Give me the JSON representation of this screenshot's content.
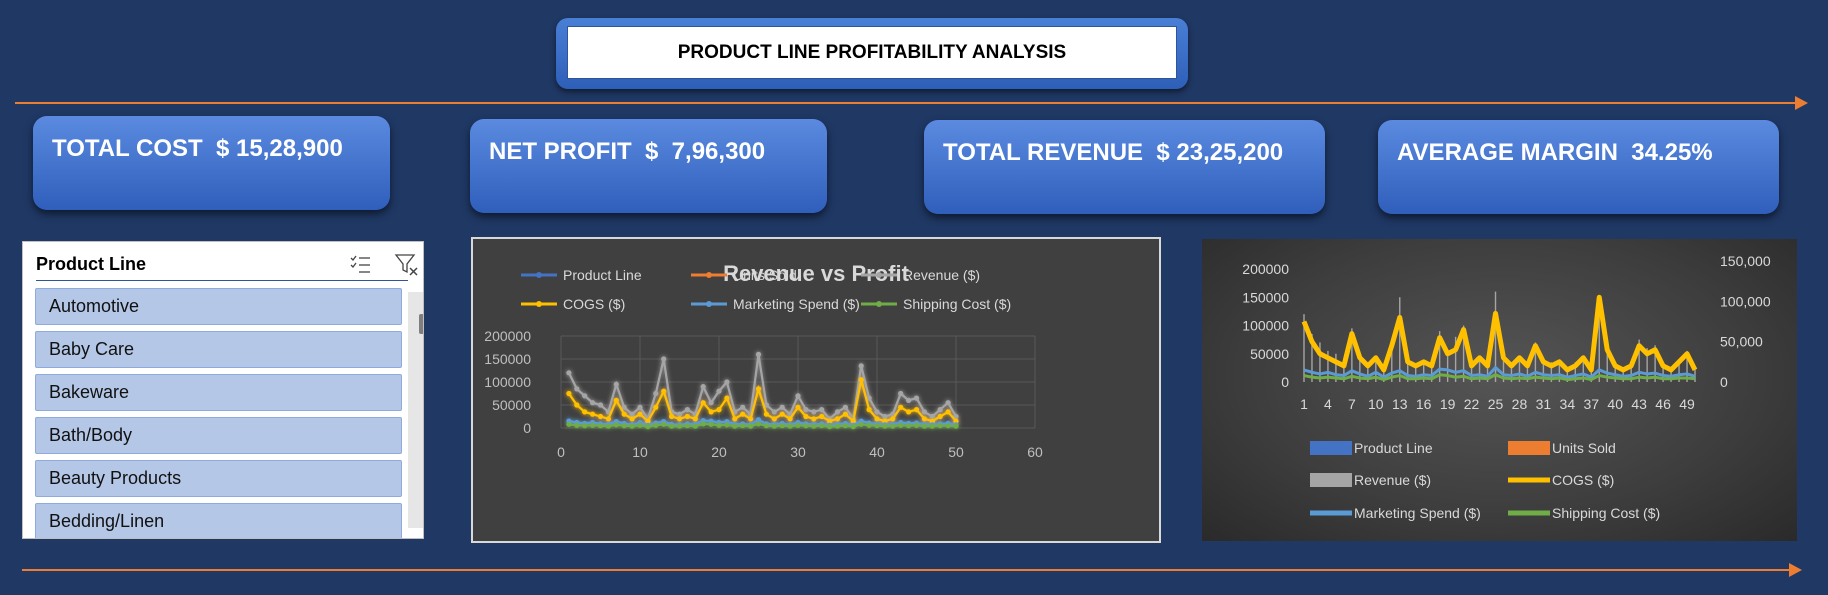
{
  "title": "PRODUCT LINE PROFITABILITY ANALYSIS",
  "kpis": [
    {
      "label": "TOTAL COST  $ 15,28,900"
    },
    {
      "label": "NET PROFIT  $  7,96,300"
    },
    {
      "label": "TOTAL REVENUE  $ 23,25,200"
    },
    {
      "label": "AVERAGE MARGIN  34.25%"
    }
  ],
  "slicer": {
    "title": "Product Line",
    "items": [
      "Automotive",
      "Baby Care",
      "Bakeware",
      "Bath/Body",
      "Beauty Products",
      "Bedding/Linen"
    ],
    "icons": [
      "multi-select-icon",
      "clear-filter-icon"
    ]
  },
  "colors": {
    "background": "#1f3864",
    "accent_line": "#ed7d31",
    "kpi_fill": "#4472c4",
    "series": {
      "Product Line": "#4472c4",
      "Units Sold": "#ed7d31",
      "Revenue ($)": "#a5a5a5",
      "COGS ($)": "#ffc000",
      "Marketing Spend ($)": "#5b9bd5",
      "Shipping Cost ($)": "#70ad47"
    }
  },
  "chart_data": [
    {
      "type": "scatter",
      "title": "Revenue vs Profit",
      "xlabel": "",
      "ylabel": "",
      "xlim": [
        0,
        60
      ],
      "ylim": [
        0,
        200000
      ],
      "x_ticks": [
        "0",
        "10",
        "20",
        "30",
        "40",
        "50",
        "60"
      ],
      "y_ticks": [
        "0",
        "50000",
        "100000",
        "150000",
        "200000"
      ],
      "grid": true,
      "legend_position": "top",
      "legend": [
        "Product Line",
        "Units Sold",
        "Revenue ($)",
        "COGS ($)",
        "Marketing Spend ($)",
        "Shipping Cost ($)"
      ],
      "x": [
        1,
        2,
        3,
        4,
        5,
        6,
        7,
        8,
        9,
        10,
        11,
        12,
        13,
        14,
        15,
        16,
        17,
        18,
        19,
        20,
        21,
        22,
        23,
        24,
        25,
        26,
        27,
        28,
        29,
        30,
        31,
        32,
        33,
        34,
        35,
        36,
        37,
        38,
        39,
        40,
        41,
        42,
        43,
        44,
        45,
        46,
        47,
        48,
        49,
        50
      ],
      "series": [
        {
          "name": "Revenue ($)",
          "values": [
            120000,
            85000,
            70000,
            55000,
            50000,
            35000,
            95000,
            45000,
            30000,
            45000,
            20000,
            75000,
            150000,
            35000,
            30000,
            40000,
            30000,
            90000,
            55000,
            80000,
            100000,
            35000,
            45000,
            30000,
            160000,
            50000,
            35000,
            45000,
            30000,
            70000,
            40000,
            35000,
            40000,
            20000,
            35000,
            45000,
            20000,
            135000,
            65000,
            35000,
            25000,
            30000,
            75000,
            60000,
            65000,
            35000,
            25000,
            40000,
            55000,
            25000
          ]
        },
        {
          "name": "COGS ($)",
          "values": [
            75000,
            50000,
            35000,
            30000,
            25000,
            20000,
            60000,
            30000,
            20000,
            30000,
            15000,
            45000,
            80000,
            25000,
            20000,
            25000,
            20000,
            55000,
            35000,
            40000,
            65000,
            20000,
            30000,
            20000,
            85000,
            30000,
            20000,
            30000,
            20000,
            45000,
            25000,
            20000,
            25000,
            15000,
            20000,
            30000,
            15000,
            105000,
            40000,
            20000,
            15000,
            20000,
            45000,
            35000,
            40000,
            20000,
            15000,
            25000,
            35000,
            15000
          ]
        },
        {
          "name": "Marketing Spend ($)",
          "values": [
            15000,
            12000,
            10000,
            12000,
            9000,
            8000,
            14000,
            10000,
            7000,
            12000,
            6000,
            11000,
            14000,
            8000,
            7000,
            9000,
            8000,
            16000,
            15000,
            12000,
            14000,
            8000,
            9000,
            7000,
            18000,
            9000,
            8000,
            10000,
            7000,
            12000,
            9000,
            8000,
            9000,
            6000,
            8000,
            10000,
            6000,
            15000,
            11000,
            9000,
            7000,
            8000,
            12000,
            10000,
            11000,
            8000,
            7000,
            9000,
            10000,
            7000
          ]
        },
        {
          "name": "Shipping Cost ($)",
          "values": [
            8000,
            6000,
            5000,
            6000,
            5000,
            4000,
            7000,
            5000,
            4000,
            6000,
            3000,
            6000,
            8000,
            4000,
            4000,
            5000,
            4000,
            9000,
            8000,
            6000,
            7000,
            4000,
            5000,
            4000,
            9000,
            5000,
            4000,
            5000,
            4000,
            6000,
            5000,
            4000,
            5000,
            3000,
            4000,
            5000,
            3000,
            8000,
            6000,
            5000,
            4000,
            4000,
            6000,
            5000,
            6000,
            4000,
            4000,
            5000,
            5000,
            4000
          ]
        }
      ]
    },
    {
      "type": "line",
      "title": "",
      "x_ticks": [
        "1",
        "4",
        "7",
        "10",
        "13",
        "16",
        "19",
        "22",
        "25",
        "28",
        "31",
        "34",
        "37",
        "40",
        "43",
        "46",
        "49"
      ],
      "y_left_ticks": [
        "0",
        "50000",
        "100000",
        "150000",
        "200000"
      ],
      "y_right_ticks": [
        "0",
        "50,000",
        "100,000",
        "150,000"
      ],
      "ylim_left": [
        0,
        200000
      ],
      "ylim_right": [
        0,
        150000
      ],
      "legend_position": "bottom",
      "legend": [
        "Product Line",
        "Units Sold",
        "Revenue ($)",
        "COGS ($)",
        "Marketing Spend ($)",
        "Shipping Cost ($)"
      ],
      "series": [
        {
          "name": "Revenue ($)",
          "type": "bar",
          "axis": "left",
          "values": [
            120000,
            85000,
            70000,
            55000,
            50000,
            35000,
            95000,
            45000,
            30000,
            45000,
            20000,
            75000,
            150000,
            35000,
            30000,
            40000,
            30000,
            90000,
            55000,
            80000,
            100000,
            35000,
            45000,
            30000,
            160000,
            50000,
            35000,
            45000,
            30000,
            70000,
            40000,
            35000,
            40000,
            20000,
            35000,
            45000,
            20000,
            135000,
            65000,
            35000,
            25000,
            30000,
            75000,
            60000,
            65000,
            35000,
            25000,
            40000,
            55000,
            25000
          ]
        },
        {
          "name": "COGS ($)",
          "type": "line",
          "axis": "right",
          "values": [
            75000,
            50000,
            35000,
            30000,
            25000,
            20000,
            60000,
            30000,
            20000,
            30000,
            15000,
            45000,
            80000,
            25000,
            20000,
            25000,
            20000,
            55000,
            35000,
            40000,
            65000,
            20000,
            30000,
            20000,
            85000,
            30000,
            20000,
            30000,
            20000,
            45000,
            25000,
            20000,
            25000,
            15000,
            20000,
            30000,
            15000,
            105000,
            40000,
            20000,
            15000,
            20000,
            45000,
            35000,
            40000,
            20000,
            15000,
            25000,
            35000,
            15000
          ]
        },
        {
          "name": "Marketing Spend ($)",
          "type": "line",
          "axis": "right",
          "values": [
            15000,
            12000,
            10000,
            12000,
            9000,
            8000,
            14000,
            10000,
            7000,
            12000,
            6000,
            11000,
            14000,
            8000,
            7000,
            9000,
            8000,
            16000,
            15000,
            12000,
            14000,
            8000,
            9000,
            7000,
            18000,
            9000,
            8000,
            10000,
            7000,
            12000,
            9000,
            8000,
            9000,
            6000,
            8000,
            10000,
            6000,
            15000,
            11000,
            9000,
            7000,
            8000,
            12000,
            10000,
            11000,
            8000,
            7000,
            9000,
            10000,
            7000
          ]
        },
        {
          "name": "Shipping Cost ($)",
          "type": "line",
          "axis": "right",
          "values": [
            8000,
            6000,
            5000,
            6000,
            5000,
            4000,
            7000,
            5000,
            4000,
            6000,
            3000,
            6000,
            8000,
            4000,
            4000,
            5000,
            4000,
            9000,
            8000,
            6000,
            7000,
            4000,
            5000,
            4000,
            9000,
            5000,
            4000,
            5000,
            4000,
            6000,
            5000,
            4000,
            5000,
            3000,
            4000,
            5000,
            3000,
            8000,
            6000,
            5000,
            4000,
            4000,
            6000,
            5000,
            6000,
            4000,
            4000,
            5000,
            5000,
            4000
          ]
        }
      ]
    }
  ]
}
